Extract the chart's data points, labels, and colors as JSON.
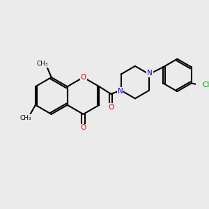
{
  "background_color": "#ebebeb",
  "bond_color": "#000000",
  "bond_width": 1.5,
  "oxygen_color": "#ff0000",
  "nitrogen_color": "#0000ff",
  "chlorine_color": "#00aa00",
  "figsize": [
    3.0,
    3.0
  ],
  "dpi": 100,
  "xlim": [
    0,
    10
  ],
  "ylim": [
    0,
    10
  ]
}
